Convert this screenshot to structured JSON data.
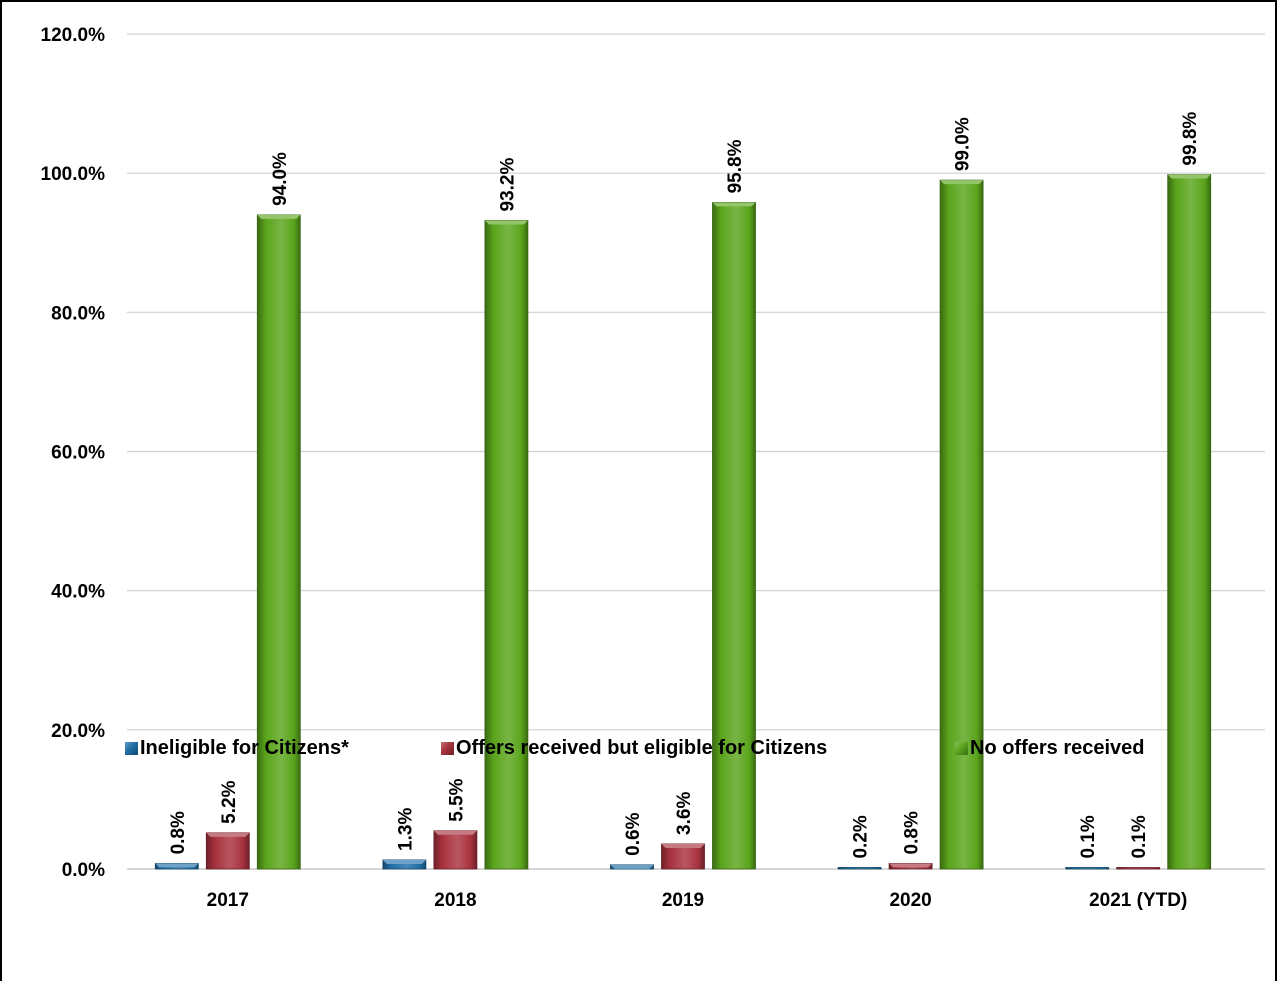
{
  "chart_data": {
    "type": "bar",
    "categories": [
      "2017",
      "2018",
      "2019",
      "2020",
      "2021 (YTD)"
    ],
    "series": [
      {
        "name": "Ineligible for Citizens*",
        "color": "#1f6fa8",
        "values": [
          0.8,
          1.3,
          0.6,
          0.2,
          0.1
        ],
        "labels": [
          "0.8%",
          "1.3%",
          "0.6%",
          "0.2%",
          "0.1%"
        ]
      },
      {
        "name": "Offers received but eligible for Citizens",
        "color": "#a8323e",
        "values": [
          5.2,
          5.5,
          3.6,
          0.8,
          0.1
        ],
        "labels": [
          "5.2%",
          "5.5%",
          "3.6%",
          "0.8%",
          "0.1%"
        ]
      },
      {
        "name": "No offers received",
        "color": "#5aa51c",
        "values": [
          94.0,
          93.2,
          95.8,
          99.0,
          99.8
        ],
        "labels": [
          "94.0%",
          "93.2%",
          "95.8%",
          "99.0%",
          "99.8%"
        ]
      }
    ],
    "ylim": [
      0,
      120
    ],
    "yticks": [
      "0.0%",
      "20.0%",
      "40.0%",
      "60.0%",
      "80.0%",
      "100.0%",
      "120.0%"
    ],
    "grid": true,
    "legend_position": "bottom",
    "title": "",
    "xlabel": "",
    "ylabel": ""
  }
}
